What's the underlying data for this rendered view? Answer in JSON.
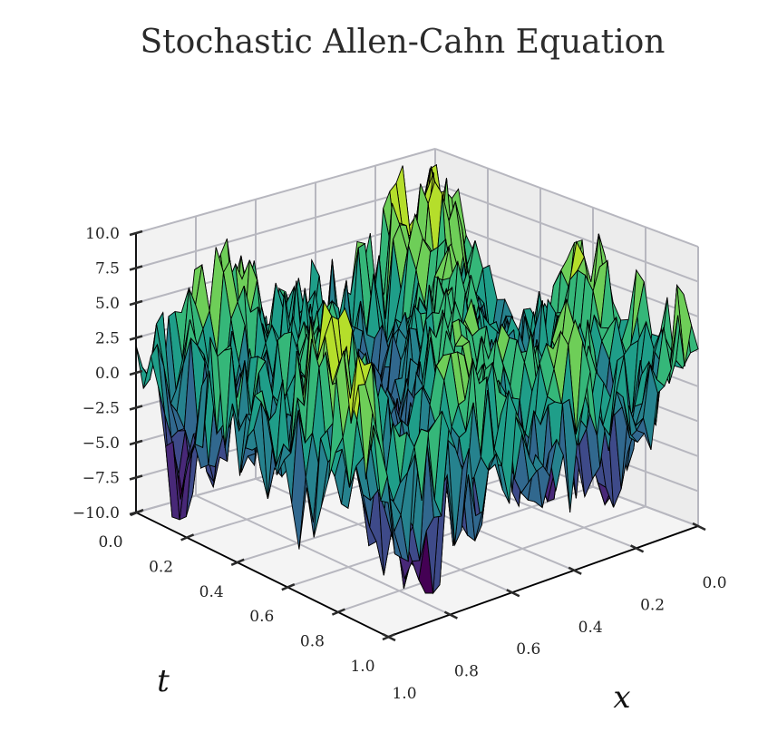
{
  "chart_data": {
    "type": "surface",
    "title": "Stochastic Allen-Cahn Equation",
    "xlabel": "x",
    "ylabel": "t",
    "zlabel": "",
    "xlim": [
      0.0,
      1.0
    ],
    "ylim": [
      0.0,
      1.0
    ],
    "zlim": [
      -10.0,
      10.0
    ],
    "x_ticks": [
      "0.0",
      "0.2",
      "0.4",
      "0.6",
      "0.8",
      "1.0"
    ],
    "t_ticks": [
      "0.0",
      "0.2",
      "0.4",
      "0.6",
      "0.8",
      "1.0"
    ],
    "z_ticks": [
      "10.0",
      "7.5",
      "5.0",
      "2.5",
      "0.0",
      "−2.5",
      "−5.0",
      "−7.5",
      "−10.0"
    ],
    "colormap": "viridis",
    "edgecolor": "#000000",
    "grid": true,
    "surface_summary": {
      "z_min_approx": -10.0,
      "z_max_approx": 10.0,
      "description_of_values": "noisy oscillating field roughly within the z range"
    },
    "colors": {
      "pane": "#f2f2f2",
      "grid": "#b7b7bf",
      "axis": "#000000"
    }
  }
}
